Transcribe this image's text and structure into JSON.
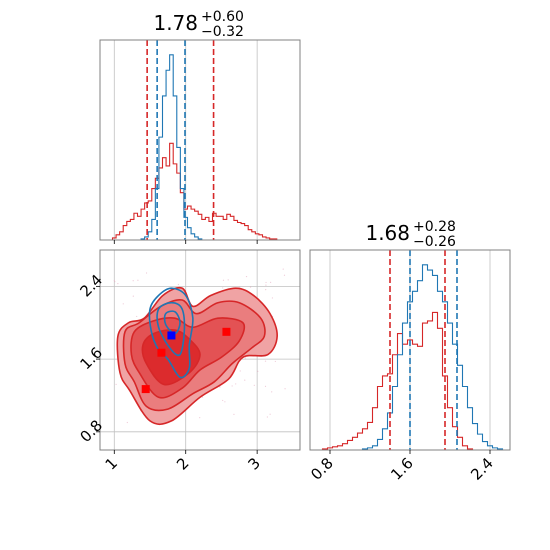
{
  "colors": {
    "red": "#d62728",
    "blue": "#1f77b4",
    "point_blue": "#0000ff",
    "point_red": "#ff0000",
    "grid": "#c0c0c0",
    "frame": "#808080"
  },
  "chart_data": [
    {
      "panel": "marginal-x",
      "type": "histogram",
      "title": {
        "value": "1.78",
        "upper": "+0.60",
        "lower": "−0.32"
      },
      "xlim": [
        0.8,
        3.6
      ],
      "xticks": [
        "1",
        "2",
        "3"
      ],
      "grid": true,
      "series": [
        {
          "color": "red",
          "x": [
            1.0,
            1.05,
            1.1,
            1.15,
            1.2,
            1.25,
            1.3,
            1.35,
            1.4,
            1.45,
            1.5,
            1.55,
            1.6,
            1.65,
            1.7,
            1.75,
            1.8,
            1.85,
            1.9,
            1.95,
            2.0,
            2.05,
            2.1,
            2.15,
            2.2,
            2.25,
            2.3,
            2.35,
            2.4,
            2.45,
            2.5,
            2.55,
            2.6,
            2.65,
            2.7,
            2.75,
            2.8,
            2.85,
            2.9,
            2.95,
            3.0,
            3.05,
            3.1,
            3.15,
            3.2,
            3.25,
            3.3
          ],
          "counts": [
            2,
            5,
            8,
            14,
            18,
            20,
            26,
            23,
            30,
            36,
            38,
            50,
            60,
            70,
            80,
            72,
            94,
            74,
            65,
            46,
            30,
            33,
            30,
            28,
            25,
            20,
            22,
            18,
            26,
            23,
            23,
            20,
            25,
            23,
            19,
            17,
            16,
            14,
            10,
            8,
            6,
            5,
            3,
            2,
            1,
            1,
            0
          ]
        },
        {
          "color": "blue",
          "x": [
            1.4,
            1.45,
            1.5,
            1.55,
            1.6,
            1.65,
            1.7,
            1.75,
            1.8,
            1.85,
            1.9,
            1.95,
            2.0,
            2.05,
            2.1,
            2.15,
            2.2,
            2.25
          ],
          "counts": [
            1,
            3,
            8,
            20,
            50,
            100,
            140,
            165,
            180,
            140,
            90,
            50,
            22,
            12,
            6,
            3,
            1,
            0
          ]
        }
      ],
      "quantile_lines": [
        {
          "color": "red",
          "x": 1.46
        },
        {
          "color": "red",
          "x": 2.39
        },
        {
          "color": "blue",
          "x": 1.6
        },
        {
          "color": "blue",
          "x": 1.99
        }
      ]
    },
    {
      "panel": "marginal-y",
      "type": "histogram",
      "title": {
        "value": "1.68",
        "upper": "+0.28",
        "lower": "−0.26"
      },
      "xlim": [
        0.6,
        2.6
      ],
      "xticks": [
        "0.8",
        "1.6",
        "2.4"
      ],
      "grid": true,
      "series": [
        {
          "color": "red",
          "x": [
            0.75,
            0.8,
            0.85,
            0.9,
            0.95,
            1.0,
            1.05,
            1.1,
            1.15,
            1.2,
            1.25,
            1.3,
            1.35,
            1.4,
            1.45,
            1.5,
            1.55,
            1.6,
            1.65,
            1.7,
            1.75,
            1.8,
            1.85,
            1.9,
            1.95,
            2.0,
            2.05,
            2.1,
            2.15,
            2.2
          ],
          "counts": [
            1,
            2,
            3,
            4,
            6,
            9,
            12,
            16,
            20,
            26,
            40,
            60,
            70,
            72,
            90,
            110,
            100,
            104,
            100,
            98,
            120,
            122,
            130,
            115,
            70,
            40,
            22,
            12,
            4,
            1
          ]
        },
        {
          "color": "blue",
          "x": [
            1.15,
            1.2,
            1.25,
            1.3,
            1.35,
            1.4,
            1.45,
            1.5,
            1.55,
            1.6,
            1.65,
            1.7,
            1.75,
            1.8,
            1.85,
            1.9,
            1.95,
            2.0,
            2.05,
            2.1,
            2.15,
            2.2,
            2.25,
            2.3,
            2.35,
            2.4,
            2.45,
            2.5
          ],
          "counts": [
            1,
            2,
            4,
            10,
            20,
            35,
            60,
            90,
            120,
            140,
            150,
            160,
            175,
            170,
            165,
            150,
            140,
            120,
            100,
            80,
            60,
            40,
            25,
            15,
            8,
            4,
            2,
            1
          ]
        }
      ],
      "quantile_lines": [
        {
          "color": "red",
          "x": 1.4
        },
        {
          "color": "red",
          "x": 1.95
        },
        {
          "color": "blue",
          "x": 1.6
        },
        {
          "color": "blue",
          "x": 2.07
        }
      ]
    },
    {
      "panel": "joint",
      "type": "contour",
      "xlim": [
        0.8,
        3.6
      ],
      "ylim": [
        0.6,
        2.8
      ],
      "xticks": [
        "1",
        "2",
        "3"
      ],
      "yticks": [
        "0.8",
        "1.6",
        "2.4"
      ],
      "grid": true,
      "red_levels": [
        [
          [
            1.22,
            1.25
          ],
          [
            1.08,
            1.45
          ],
          [
            1.05,
            1.85
          ],
          [
            1.2,
            2.0
          ],
          [
            1.42,
            2.05
          ],
          [
            1.68,
            2.3
          ],
          [
            1.95,
            2.38
          ],
          [
            2.1,
            2.18
          ],
          [
            2.35,
            2.3
          ],
          [
            2.7,
            2.38
          ],
          [
            2.95,
            2.3
          ],
          [
            3.18,
            2.1
          ],
          [
            3.28,
            1.85
          ],
          [
            3.15,
            1.65
          ],
          [
            2.8,
            1.62
          ],
          [
            2.6,
            1.38
          ],
          [
            2.2,
            1.18
          ],
          [
            1.8,
            0.92
          ],
          [
            1.5,
            0.92
          ]
        ],
        [
          [
            1.28,
            1.35
          ],
          [
            1.15,
            1.55
          ],
          [
            1.15,
            1.9
          ],
          [
            1.35,
            2.0
          ],
          [
            1.65,
            2.18
          ],
          [
            1.95,
            2.25
          ],
          [
            2.15,
            2.1
          ],
          [
            2.45,
            2.22
          ],
          [
            2.75,
            2.22
          ],
          [
            3.05,
            2.05
          ],
          [
            3.1,
            1.85
          ],
          [
            2.92,
            1.72
          ],
          [
            2.65,
            1.55
          ],
          [
            2.4,
            1.35
          ],
          [
            2.1,
            1.22
          ],
          [
            1.75,
            1.05
          ],
          [
            1.45,
            1.08
          ]
        ],
        [
          [
            1.35,
            1.45
          ],
          [
            1.24,
            1.65
          ],
          [
            1.28,
            1.9
          ],
          [
            1.55,
            2.02
          ],
          [
            1.85,
            2.05
          ],
          [
            2.1,
            1.95
          ],
          [
            2.45,
            2.05
          ],
          [
            2.8,
            2.0
          ],
          [
            2.75,
            1.8
          ],
          [
            2.5,
            1.62
          ],
          [
            2.2,
            1.48
          ],
          [
            1.95,
            1.28
          ],
          [
            1.62,
            1.18
          ]
        ],
        [
          [
            1.45,
            1.55
          ],
          [
            1.4,
            1.75
          ],
          [
            1.55,
            1.88
          ],
          [
            1.85,
            1.92
          ],
          [
            2.05,
            1.82
          ],
          [
            2.2,
            1.65
          ],
          [
            2.05,
            1.45
          ],
          [
            1.7,
            1.32
          ]
        ]
      ],
      "blue_levels": [
        [
          [
            1.52,
            1.9
          ],
          [
            1.5,
            2.15
          ],
          [
            1.62,
            2.3
          ],
          [
            1.8,
            2.38
          ],
          [
            2.0,
            2.3
          ],
          [
            2.1,
            2.05
          ],
          [
            2.05,
            1.75
          ],
          [
            2.05,
            1.5
          ],
          [
            1.92,
            1.4
          ],
          [
            1.75,
            1.6
          ],
          [
            1.62,
            1.7
          ]
        ],
        [
          [
            1.62,
            1.95
          ],
          [
            1.62,
            2.15
          ],
          [
            1.8,
            2.22
          ],
          [
            1.95,
            2.15
          ],
          [
            1.98,
            1.9
          ],
          [
            1.92,
            1.65
          ],
          [
            1.78,
            1.72
          ]
        ],
        [
          [
            1.72,
            1.98
          ],
          [
            1.72,
            2.1
          ],
          [
            1.85,
            2.12
          ],
          [
            1.92,
            2.0
          ],
          [
            1.85,
            1.88
          ]
        ]
      ],
      "points": [
        {
          "color": "point_blue",
          "x": 1.8,
          "y": 1.86
        },
        {
          "color": "point_red",
          "x": 1.66,
          "y": 1.67
        },
        {
          "color": "point_red",
          "x": 1.44,
          "y": 1.27
        },
        {
          "color": "point_red",
          "x": 2.57,
          "y": 1.9
        }
      ]
    }
  ]
}
